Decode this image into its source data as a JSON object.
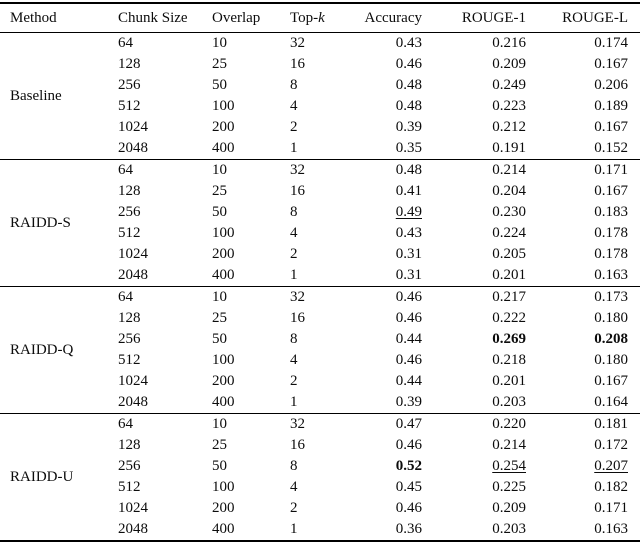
{
  "colors": {
    "background": "#ffffff",
    "text": "#0c0c0c",
    "rule": "#000000"
  },
  "table": {
    "columns": [
      "Method",
      "Chunk Size",
      "Overlap",
      {
        "text": "Top-",
        "italic": "k"
      },
      "Accuracy",
      "ROUGE-1",
      "ROUGE-L"
    ],
    "groups": [
      {
        "method": "Baseline",
        "rows": [
          [
            "64",
            "10",
            "32",
            "0.43",
            "0.216",
            "0.174"
          ],
          [
            "128",
            "25",
            "16",
            "0.46",
            "0.209",
            "0.167"
          ],
          [
            "256",
            "50",
            "8",
            "0.48",
            "0.249",
            "0.206"
          ],
          [
            "512",
            "100",
            "4",
            "0.48",
            "0.223",
            "0.189"
          ],
          [
            "1024",
            "200",
            "2",
            "0.39",
            "0.212",
            "0.167"
          ],
          [
            "2048",
            "400",
            "1",
            "0.35",
            "0.191",
            "0.152"
          ]
        ]
      },
      {
        "method": "RAIDD-S",
        "rows": [
          [
            "64",
            "10",
            "32",
            "0.48",
            "0.214",
            "0.171"
          ],
          [
            "128",
            "25",
            "16",
            "0.41",
            "0.204",
            "0.167"
          ],
          [
            "256",
            "50",
            "8",
            {
              "v": "0.49",
              "style": "underline"
            },
            "0.230",
            "0.183"
          ],
          [
            "512",
            "100",
            "4",
            "0.43",
            "0.224",
            "0.178"
          ],
          [
            "1024",
            "200",
            "2",
            "0.31",
            "0.205",
            "0.178"
          ],
          [
            "2048",
            "400",
            "1",
            "0.31",
            "0.201",
            "0.163"
          ]
        ]
      },
      {
        "method": "RAIDD-Q",
        "rows": [
          [
            "64",
            "10",
            "32",
            "0.46",
            "0.217",
            "0.173"
          ],
          [
            "128",
            "25",
            "16",
            "0.46",
            "0.222",
            "0.180"
          ],
          [
            "256",
            "50",
            "8",
            "0.44",
            {
              "v": "0.269",
              "style": "bold"
            },
            {
              "v": "0.208",
              "style": "bold"
            }
          ],
          [
            "512",
            "100",
            "4",
            "0.46",
            "0.218",
            "0.180"
          ],
          [
            "1024",
            "200",
            "2",
            "0.44",
            "0.201",
            "0.167"
          ],
          [
            "2048",
            "400",
            "1",
            "0.39",
            "0.203",
            "0.164"
          ]
        ]
      },
      {
        "method": "RAIDD-U",
        "rows": [
          [
            "64",
            "10",
            "32",
            "0.47",
            "0.220",
            "0.181"
          ],
          [
            "128",
            "25",
            "16",
            "0.46",
            "0.214",
            "0.172"
          ],
          [
            "256",
            "50",
            "8",
            {
              "v": "0.52",
              "style": "bold"
            },
            {
              "v": "0.254",
              "style": "underline"
            },
            {
              "v": "0.207",
              "style": "underline"
            }
          ],
          [
            "512",
            "100",
            "4",
            "0.45",
            "0.225",
            "0.182"
          ],
          [
            "1024",
            "200",
            "2",
            "0.46",
            "0.209",
            "0.171"
          ],
          [
            "2048",
            "400",
            "1",
            "0.36",
            "0.203",
            "0.163"
          ]
        ]
      }
    ]
  }
}
